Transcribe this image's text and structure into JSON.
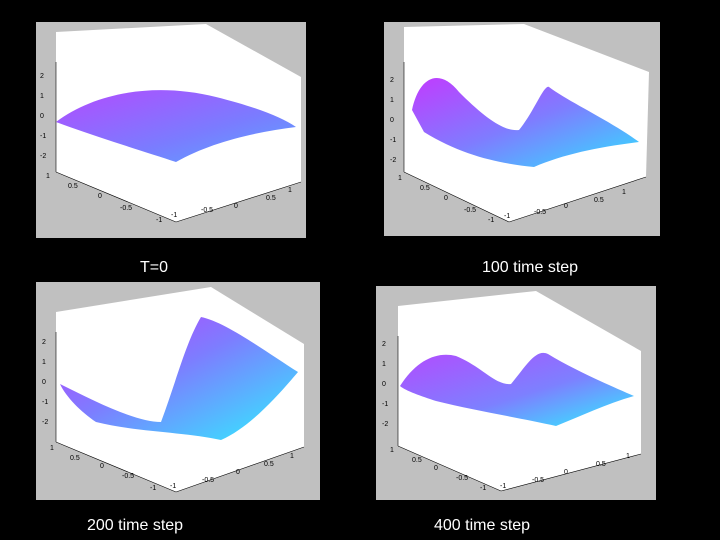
{
  "slide": {
    "background": "#000000",
    "panel_bg": "#c0c0c0"
  },
  "panels": [
    {
      "caption": "T=0",
      "z_ticks": [
        "2",
        "1",
        "0",
        "-1",
        "-2"
      ],
      "x_ticks": [
        "1",
        "0.5",
        "0",
        "-0.5",
        "-1"
      ],
      "y_ticks": [
        "-1",
        "-0.5",
        "0",
        "0.5",
        "1"
      ]
    },
    {
      "caption": "100 time step",
      "z_ticks": [
        "2",
        "1",
        "0",
        "-1",
        "-2"
      ],
      "x_ticks": [
        "1",
        "0.5",
        "0",
        "-0.5",
        "-1"
      ],
      "y_ticks": [
        "-1",
        "-0.5",
        "0",
        "0.5",
        "1"
      ]
    },
    {
      "caption": "200 time step",
      "z_ticks": [
        "2",
        "1",
        "0",
        "-1",
        "-2"
      ],
      "x_ticks": [
        "1",
        "0.5",
        "0",
        "-0.5",
        "-1"
      ],
      "y_ticks": [
        "-1",
        "-0.5",
        "0",
        "0.5",
        "1"
      ]
    },
    {
      "caption": "400 time step",
      "z_ticks": [
        "2",
        "1",
        "0",
        "-1",
        "-2"
      ],
      "x_ticks": [
        "1",
        "0.5",
        "0",
        "-0.5",
        "-1"
      ],
      "y_ticks": [
        "-1",
        "-0.5",
        "0",
        "0.5",
        "1"
      ]
    }
  ]
}
